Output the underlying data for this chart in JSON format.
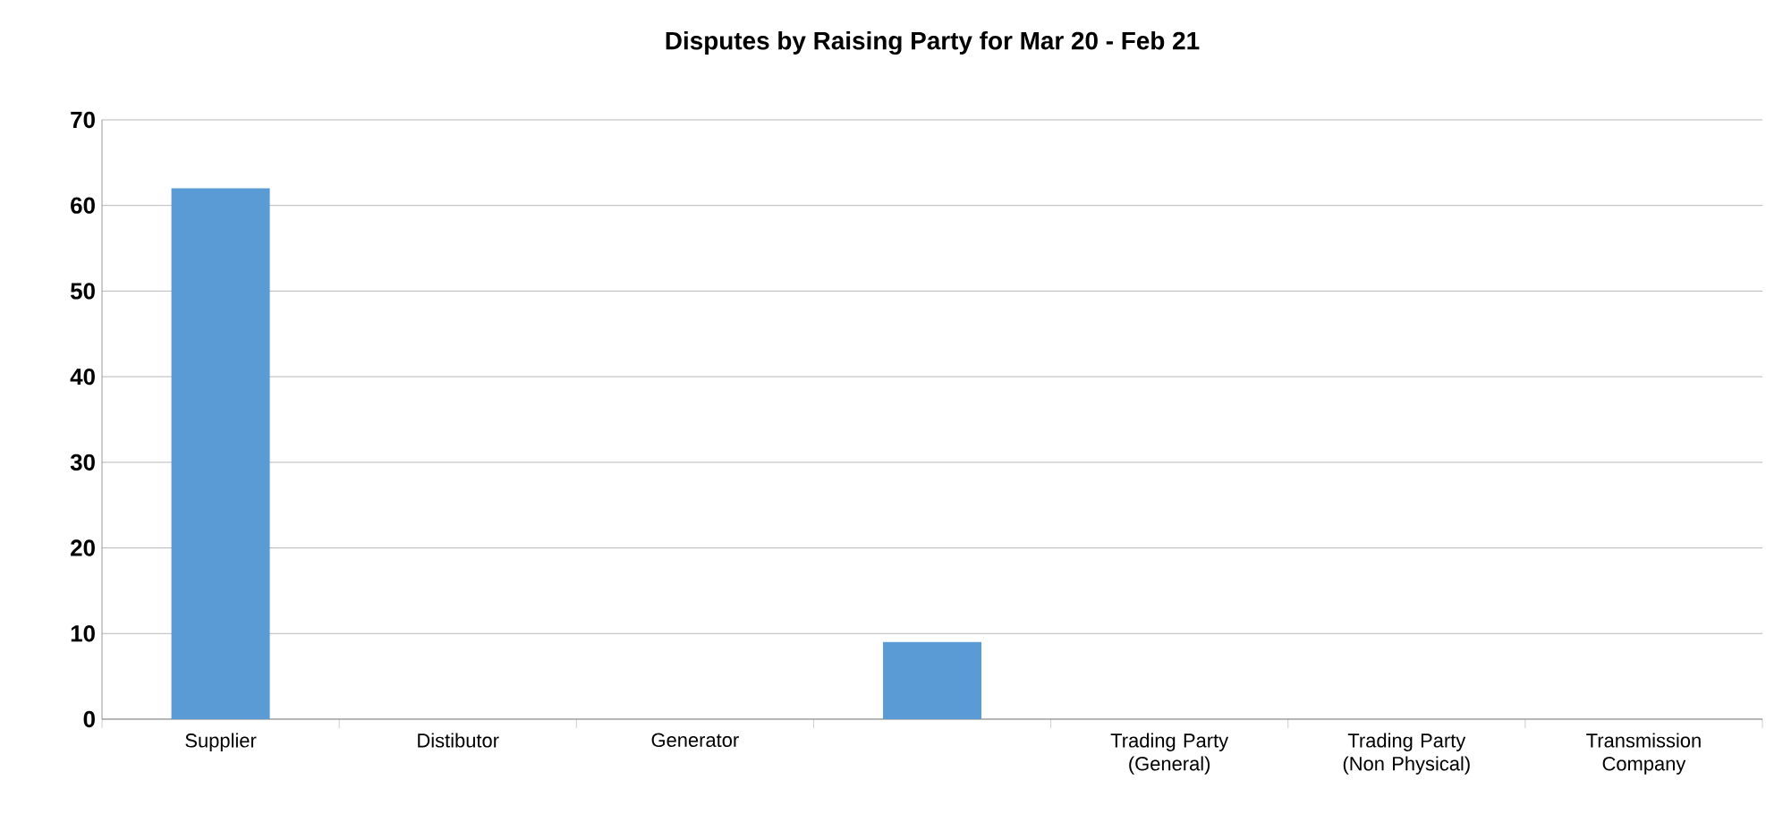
{
  "chart_data": {
    "type": "bar",
    "title": "Disputes by Raising Party for Mar 20 - Feb 21",
    "categories": [
      "Supplier",
      "Distibutor",
      "Generator",
      null,
      "Trading Party (General)",
      "Trading Party (Non Physical)",
      "Transmission Company"
    ],
    "values": [
      62,
      0,
      0,
      9,
      0,
      0,
      0
    ],
    "color": "#5b9bd5",
    "ylim": [
      0,
      70
    ],
    "yticks": [
      0,
      10,
      20,
      30,
      40,
      50,
      60,
      70
    ],
    "grid": "y"
  }
}
